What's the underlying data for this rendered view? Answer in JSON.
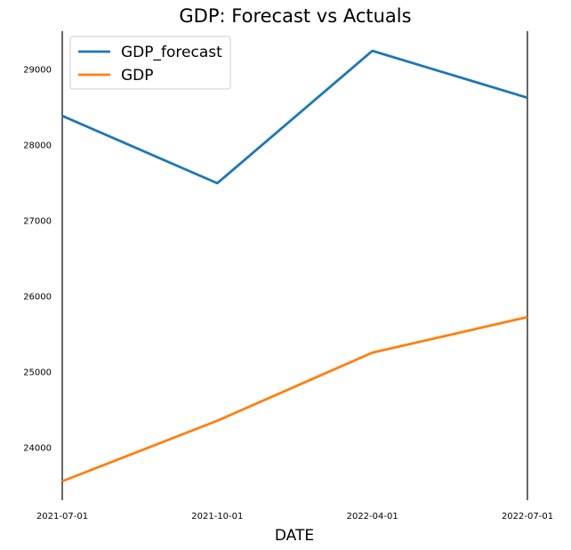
{
  "chart_data": {
    "type": "line",
    "title": "GDP: Forecast vs Actuals",
    "xlabel": "DATE",
    "ylabel": "",
    "categories": [
      "2021-07-01",
      "2021-10-01",
      "2022-04-01",
      "2022-07-01"
    ],
    "x_tick_labels": [
      "2021-07-01",
      "2021-10-01",
      "2022-04-01",
      "2022-07-01"
    ],
    "y_ticks": [
      24000,
      25000,
      26000,
      27000,
      28000,
      29000
    ],
    "ylim": [
      23300,
      29500
    ],
    "series": [
      {
        "name": "GDP_forecast",
        "color": "#1f77b4",
        "values": [
          28380,
          27490,
          29240,
          28620
        ]
      },
      {
        "name": "GDP",
        "color": "#ff7f0e",
        "values": [
          23550,
          24350,
          25250,
          25720
        ]
      }
    ],
    "legend": {
      "placement": "top-left",
      "entries": [
        "GDP_forecast",
        "GDP"
      ]
    },
    "grid": false
  }
}
